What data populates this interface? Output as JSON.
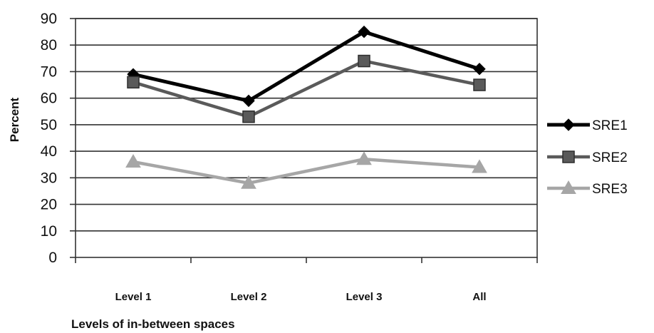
{
  "chart_data": {
    "type": "line",
    "categories": [
      "Level 1",
      "Level 2",
      "Level 3",
      "All"
    ],
    "series": [
      {
        "name": "SRE1",
        "values": [
          69,
          59,
          85,
          71
        ],
        "color": "#000000",
        "marker": "diamond"
      },
      {
        "name": "SRE2",
        "values": [
          66,
          53,
          74,
          65
        ],
        "color": "#5a5a5a",
        "marker": "square"
      },
      {
        "name": "SRE3",
        "values": [
          36,
          28,
          37,
          34
        ],
        "color": "#a6a6a6",
        "marker": "triangle"
      }
    ],
    "title": "",
    "xlabel": "Levels of in-between spaces",
    "ylabel": "Percent",
    "ylim": [
      0,
      90
    ],
    "yticks": [
      0,
      10,
      20,
      30,
      40,
      50,
      60,
      70,
      80,
      90
    ],
    "grid": true,
    "legend": "right"
  }
}
